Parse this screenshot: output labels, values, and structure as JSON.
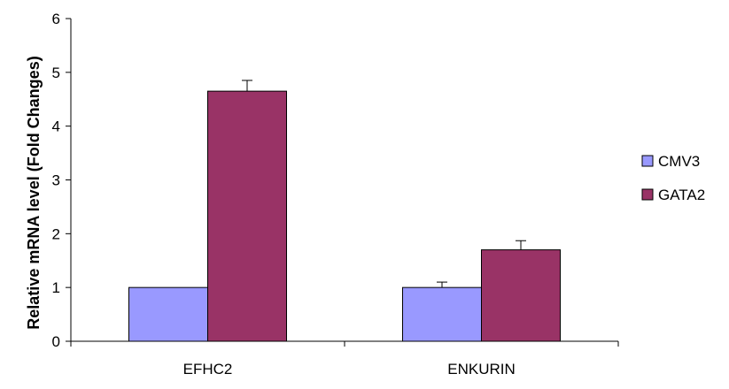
{
  "chart_data": {
    "type": "bar",
    "title": "",
    "xlabel": "",
    "ylabel": "Relative mRNA level (Fold Changes)",
    "ylim": [
      0,
      6
    ],
    "yticks": [
      "0",
      "1",
      "2",
      "3",
      "4",
      "5",
      "6"
    ],
    "categories": [
      "EFHC2",
      "ENKURIN"
    ],
    "series": [
      {
        "name": "CMV3",
        "color": "#9999FF",
        "values": [
          1.0,
          1.0
        ],
        "errors": [
          0.0,
          0.1
        ]
      },
      {
        "name": "GATA2",
        "color": "#993366",
        "values": [
          4.65,
          1.7
        ],
        "errors": [
          0.2,
          0.17
        ]
      }
    ],
    "grid": false,
    "legend_position": "right"
  }
}
